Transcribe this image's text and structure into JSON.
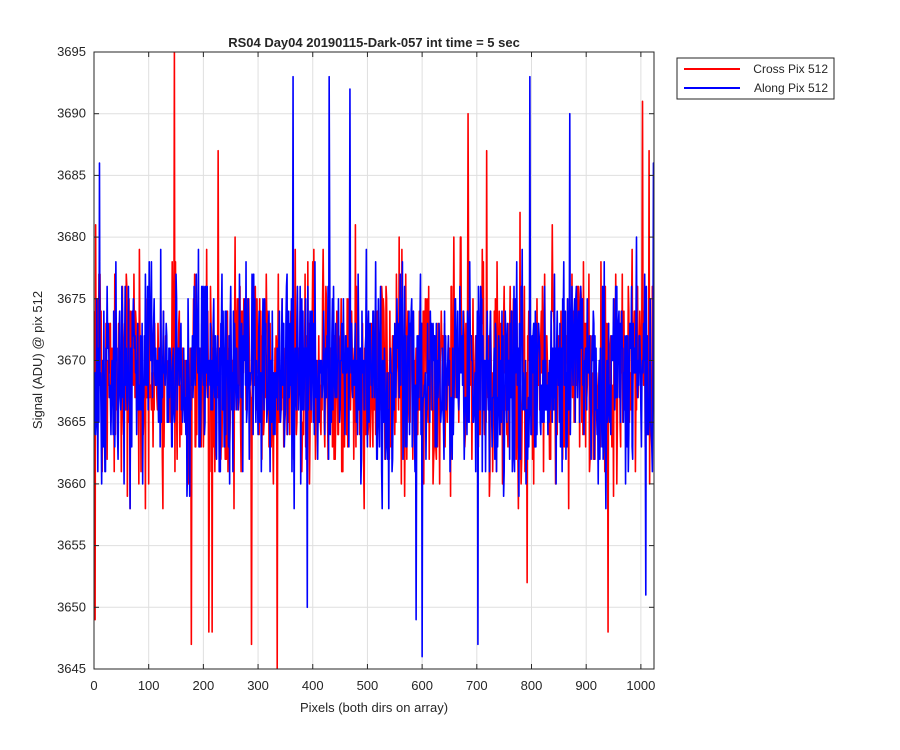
{
  "chart_data": {
    "type": "line",
    "title": "RS04 Day04 20190115-Dark-057 int time = 5 sec",
    "xlabel": "Pixels (both dirs on array)",
    "ylabel": "Signal (ADU) @ pix 512",
    "xlim": [
      0,
      1024
    ],
    "ylim": [
      3645,
      3695
    ],
    "xticks": [
      0,
      100,
      200,
      300,
      400,
      500,
      600,
      700,
      800,
      900,
      1000
    ],
    "yticks": [
      3645,
      3650,
      3655,
      3660,
      3665,
      3670,
      3675,
      3680,
      3685,
      3690,
      3695
    ],
    "grid": true,
    "legend_position": "outside-top-right",
    "series": [
      {
        "name": "Cross Pix 512",
        "color": "#ff0000",
        "x_start": 1,
        "x_step": 1,
        "points": 1024,
        "mean": 3669,
        "spread": 4.5,
        "extremes": [
          {
            "x": 2,
            "y": 3649
          },
          {
            "x": 3,
            "y": 3681
          },
          {
            "x": 147,
            "y": 3695
          },
          {
            "x": 178,
            "y": 3647
          },
          {
            "x": 210,
            "y": 3648
          },
          {
            "x": 216,
            "y": 3648
          },
          {
            "x": 227,
            "y": 3687
          },
          {
            "x": 288,
            "y": 3647
          },
          {
            "x": 335,
            "y": 3645
          },
          {
            "x": 684,
            "y": 3690
          },
          {
            "x": 718,
            "y": 3687
          },
          {
            "x": 792,
            "y": 3652
          },
          {
            "x": 940,
            "y": 3648
          },
          {
            "x": 1003,
            "y": 3691
          },
          {
            "x": 1015,
            "y": 3687
          }
        ]
      },
      {
        "name": "Along Pix 512",
        "color": "#0000ff",
        "x_start": 1,
        "x_step": 1,
        "points": 1024,
        "mean": 3669,
        "spread": 4.2,
        "extremes": [
          {
            "x": 10,
            "y": 3686
          },
          {
            "x": 364,
            "y": 3693
          },
          {
            "x": 390,
            "y": 3650
          },
          {
            "x": 430,
            "y": 3693
          },
          {
            "x": 468,
            "y": 3692
          },
          {
            "x": 589,
            "y": 3649
          },
          {
            "x": 600,
            "y": 3646
          },
          {
            "x": 702,
            "y": 3647
          },
          {
            "x": 797,
            "y": 3693
          },
          {
            "x": 870,
            "y": 3690
          },
          {
            "x": 1009,
            "y": 3651
          },
          {
            "x": 1023,
            "y": 3686
          }
        ]
      }
    ]
  }
}
